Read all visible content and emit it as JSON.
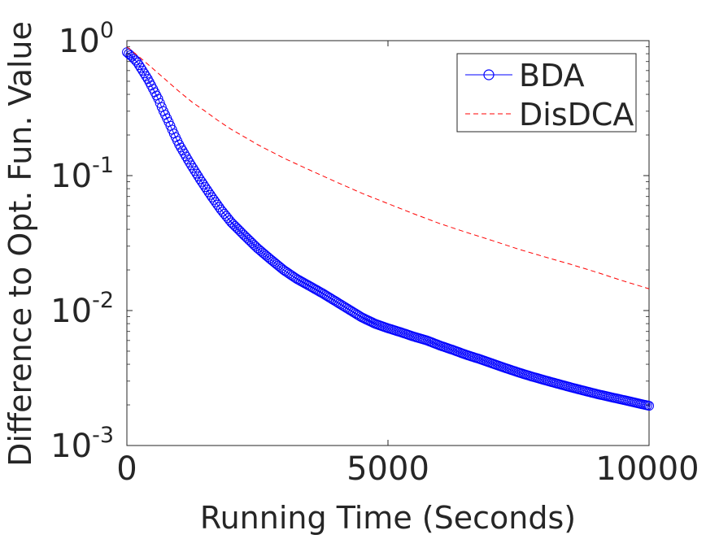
{
  "chart_data": {
    "type": "line",
    "title": "",
    "xlabel": "Running Time (Seconds)",
    "ylabel": "Difference to Opt. Fun. Value",
    "xlim": [
      0,
      10000
    ],
    "ylim": [
      0.001,
      1
    ],
    "yscale": "log",
    "grid": false,
    "legend_position": "top-right",
    "x_ticks": [
      {
        "value": 0,
        "label": "0"
      },
      {
        "value": 5000,
        "label": "5000"
      },
      {
        "value": 10000,
        "label": "10000"
      }
    ],
    "y_ticks": [
      {
        "value": 1,
        "base": "10",
        "exp": "0"
      },
      {
        "value": 0.1,
        "base": "10",
        "exp": "-1"
      },
      {
        "value": 0.01,
        "base": "10",
        "exp": "-2"
      },
      {
        "value": 0.001,
        "base": "10",
        "exp": "-3"
      }
    ],
    "series": [
      {
        "name": "BDA",
        "color": "#0000ff",
        "line_style": "solid",
        "marker": "circle",
        "x": [
          0,
          100,
          200,
          300,
          400,
          500,
          600,
          700,
          800,
          900,
          1000,
          1200,
          1400,
          1600,
          1800,
          2000,
          2250,
          2500,
          2750,
          3000,
          3250,
          3500,
          3750,
          4000,
          4250,
          4500,
          4750,
          5000,
          5250,
          5500,
          5750,
          6000,
          6250,
          6500,
          6750,
          7000,
          7250,
          7500,
          7750,
          8000,
          8250,
          8500,
          8750,
          9000,
          9250,
          9500,
          9750,
          10000
        ],
        "y": [
          0.82,
          0.76,
          0.69,
          0.6,
          0.52,
          0.44,
          0.37,
          0.3,
          0.25,
          0.205,
          0.17,
          0.125,
          0.094,
          0.072,
          0.056,
          0.045,
          0.036,
          0.029,
          0.024,
          0.02,
          0.0172,
          0.0152,
          0.0134,
          0.0117,
          0.0102,
          0.0089,
          0.008,
          0.0074,
          0.0069,
          0.0064,
          0.006,
          0.0055,
          0.0051,
          0.0047,
          0.00438,
          0.00405,
          0.00375,
          0.00348,
          0.00325,
          0.00305,
          0.00287,
          0.0027,
          0.00255,
          0.00241,
          0.00229,
          0.00218,
          0.00207,
          0.00197
        ]
      },
      {
        "name": "DisDCA",
        "color": "#ff0000",
        "line_style": "dashed",
        "marker": "none",
        "x": [
          0,
          250,
          500,
          750,
          1000,
          1250,
          1500,
          1750,
          2000,
          2500,
          3000,
          3500,
          4000,
          4500,
          5000,
          5500,
          6000,
          6500,
          7000,
          7500,
          8000,
          8500,
          9000,
          9500,
          10000
        ],
        "y": [
          0.9,
          0.75,
          0.62,
          0.51,
          0.42,
          0.35,
          0.3,
          0.255,
          0.22,
          0.17,
          0.135,
          0.11,
          0.09,
          0.074,
          0.062,
          0.052,
          0.044,
          0.038,
          0.033,
          0.0285,
          0.025,
          0.022,
          0.0192,
          0.0166,
          0.0145
        ]
      }
    ]
  }
}
